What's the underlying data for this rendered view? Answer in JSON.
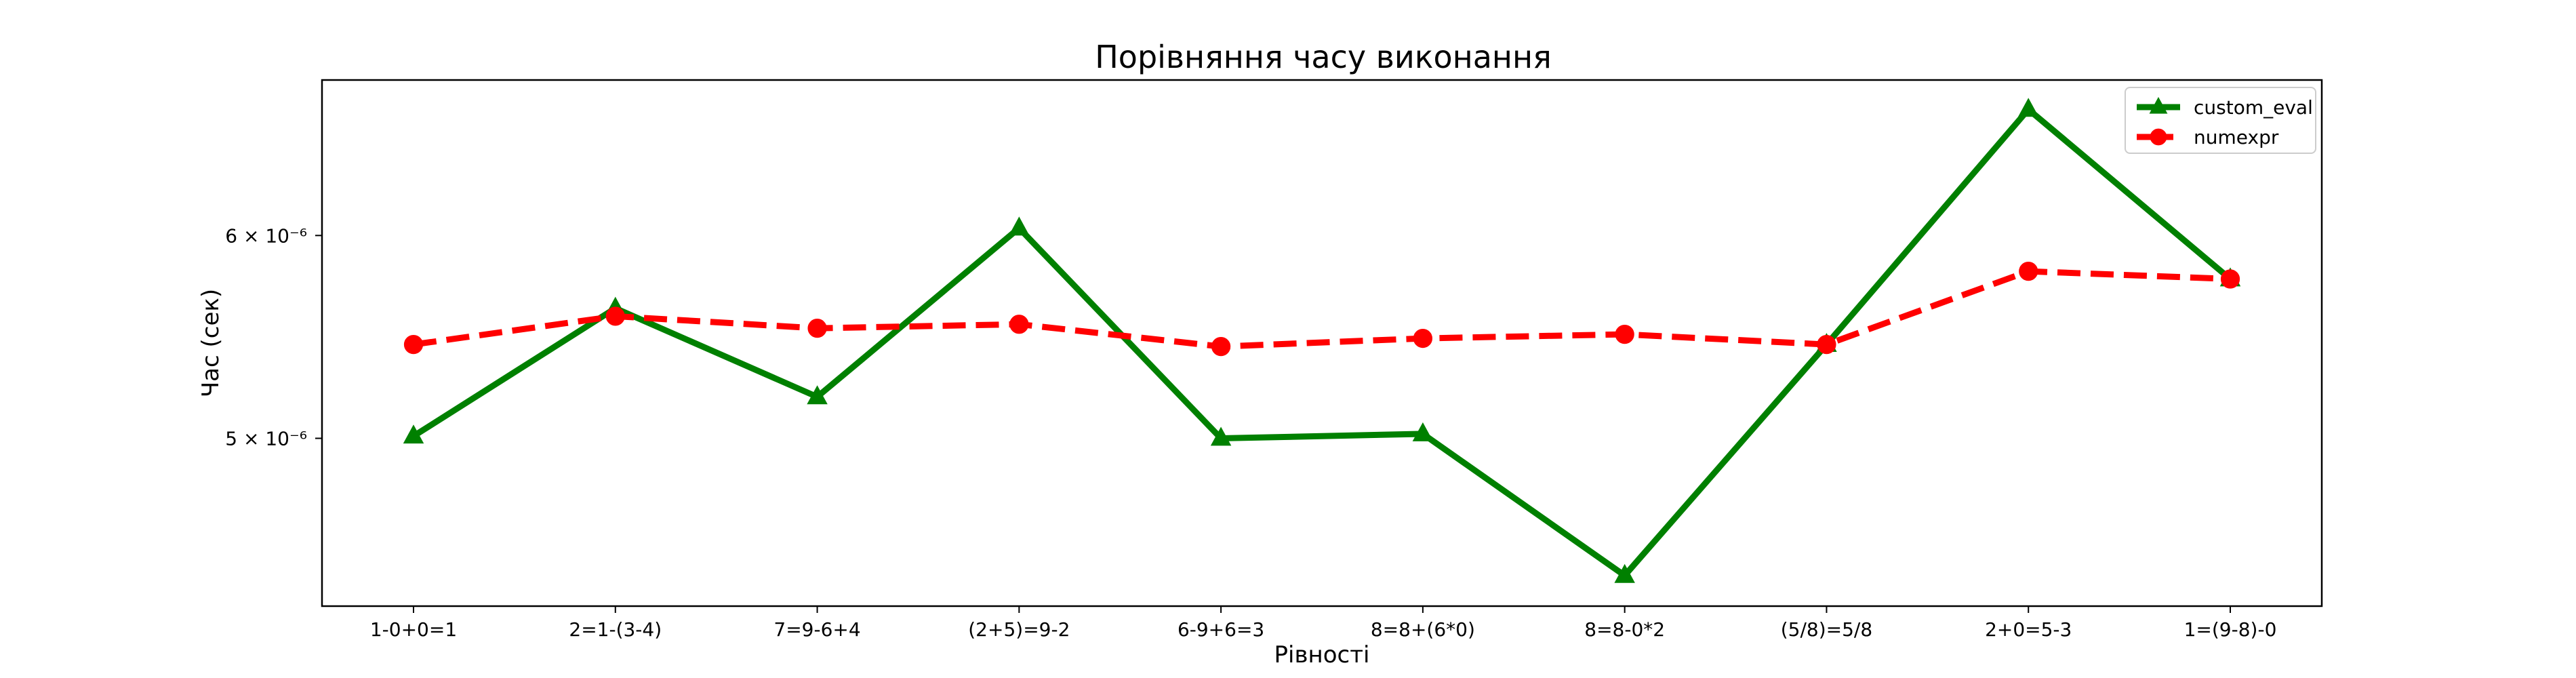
{
  "chart_data": {
    "type": "line",
    "title": "Порівняння часу виконання",
    "xlabel": "Рівності",
    "ylabel": "Час (сек)",
    "y_scale": "log",
    "ylim": [
      4.3e-06,
      6.9e-06
    ],
    "y_ticks": [
      {
        "value": 5e-06,
        "label": "5 × 10⁻⁶"
      },
      {
        "value": 6e-06,
        "label": "6 × 10⁻⁶"
      }
    ],
    "categories": [
      "1-0+0=1",
      "2=1-(3-4)",
      "7=9-6+4",
      "(2+5)=9-2",
      "6-9+6=3",
      "8=8+(6*0)",
      "8=8-0*2",
      "(5/8)=5/8",
      "2+0=5-3",
      "1=(9-8)-0"
    ],
    "grid": false,
    "legend_position": "top-right",
    "series": [
      {
        "name": "custom_eval",
        "color": "#008000",
        "line_style": "solid",
        "marker": "triangle",
        "values": [
          5.01e-06,
          5.62e-06,
          5.19e-06,
          6.04e-06,
          5e-06,
          5.02e-06,
          4.42e-06,
          5.44e-06,
          6.72e-06,
          5.77e-06
        ]
      },
      {
        "name": "numexpr",
        "color": "#ff0000",
        "line_style": "dashed",
        "marker": "circle",
        "values": [
          5.44e-06,
          5.58e-06,
          5.52e-06,
          5.54e-06,
          5.43e-06,
          5.47e-06,
          5.49e-06,
          5.44e-06,
          5.81e-06,
          5.77e-06
        ]
      }
    ]
  }
}
